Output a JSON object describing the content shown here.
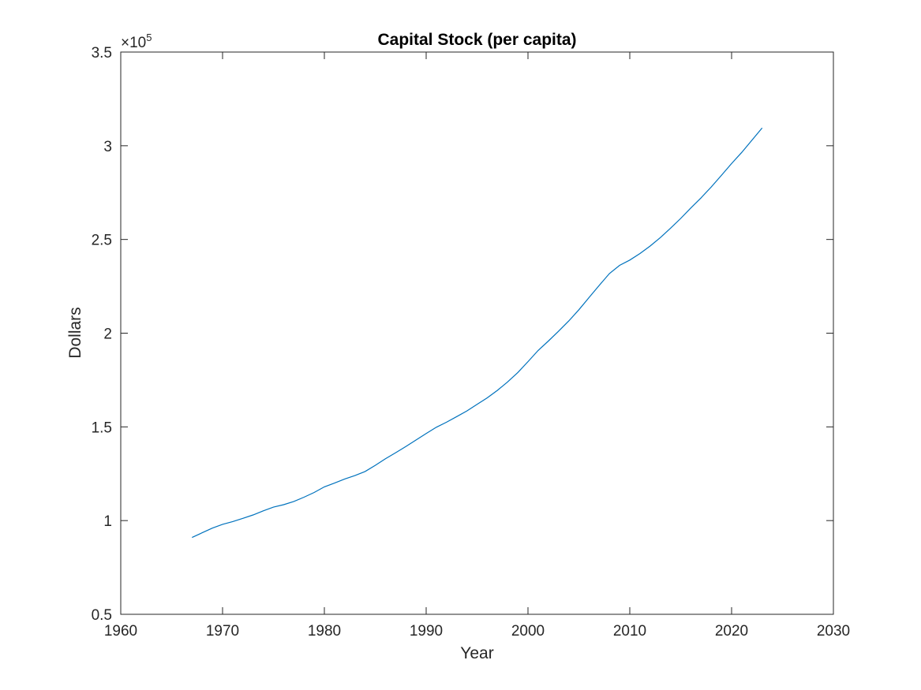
{
  "chart_data": {
    "type": "line",
    "title": "Capital Stock (per capita)",
    "xlabel": "Year",
    "ylabel": "Dollars",
    "y_exponent_label": "×10",
    "y_exponent_power": "5",
    "xlim": [
      1960,
      2030
    ],
    "ylim": [
      0.5,
      3.5
    ],
    "x_ticks": [
      1960,
      1970,
      1980,
      1990,
      2000,
      2010,
      2020,
      2030
    ],
    "x_tick_labels": [
      "1960",
      "1970",
      "1980",
      "1990",
      "2000",
      "2010",
      "2020",
      "2030"
    ],
    "y_ticks": [
      0.5,
      1,
      1.5,
      2,
      2.5,
      3,
      3.5
    ],
    "y_tick_labels": [
      "0.5",
      "1",
      "1.5",
      "2",
      "2.5",
      "3",
      "3.5"
    ],
    "grid": false,
    "line_color": "#0072BD",
    "series": [
      {
        "x": [
          1967,
          1968,
          1969,
          1970,
          1971,
          1972,
          1973,
          1974,
          1975,
          1976,
          1977,
          1978,
          1979,
          1980,
          1981,
          1982,
          1983,
          1984,
          1985,
          1986,
          1987,
          1988,
          1989,
          1990,
          1991,
          1992,
          1993,
          1994,
          1995,
          1996,
          1997,
          1998,
          1999,
          2000,
          2001,
          2002,
          2003,
          2004,
          2005,
          2006,
          2007,
          2008,
          2009,
          2010,
          2011,
          2012,
          2013,
          2014,
          2015,
          2016,
          2017,
          2018,
          2019,
          2020,
          2021,
          2022,
          2023
        ],
        "values": [
          0.91,
          0.935,
          0.96,
          0.98,
          0.995,
          1.012,
          1.03,
          1.052,
          1.072,
          1.085,
          1.102,
          1.125,
          1.15,
          1.18,
          1.2,
          1.222,
          1.24,
          1.262,
          1.295,
          1.33,
          1.362,
          1.395,
          1.43,
          1.465,
          1.498,
          1.525,
          1.555,
          1.585,
          1.62,
          1.655,
          1.695,
          1.74,
          1.79,
          1.848,
          1.908,
          1.958,
          2.01,
          2.065,
          2.125,
          2.19,
          2.255,
          2.318,
          2.362,
          2.39,
          2.425,
          2.465,
          2.51,
          2.56,
          2.612,
          2.668,
          2.722,
          2.78,
          2.842,
          2.905,
          2.965,
          3.03,
          3.095
        ]
      }
    ]
  }
}
